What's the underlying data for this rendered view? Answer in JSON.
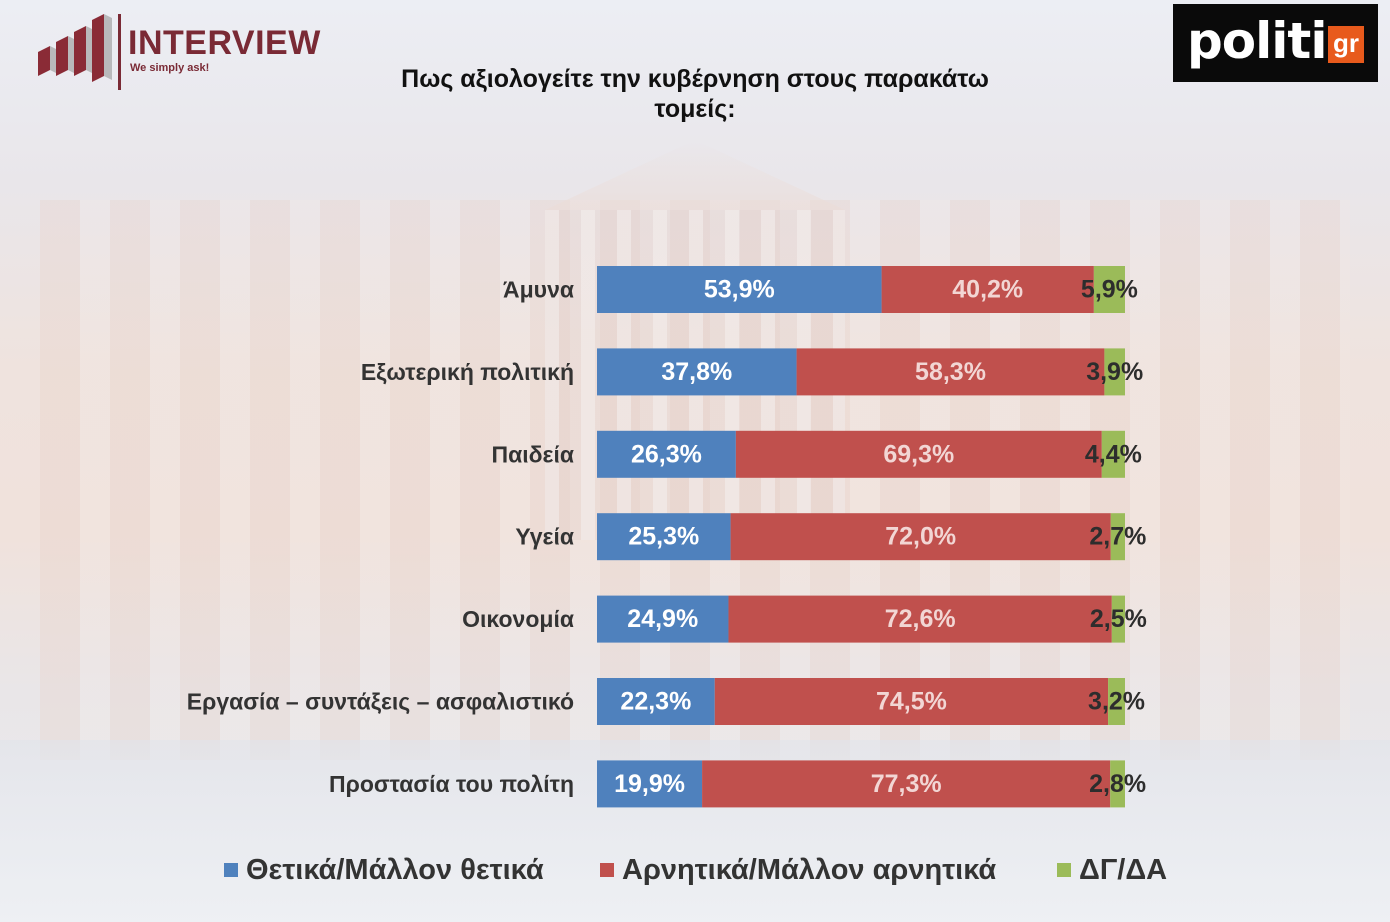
{
  "brand": {
    "interview_name": "INTERVIEW",
    "interview_tagline": "We simply ask!",
    "politic_word": "politic",
    "politic_suffix": "gr"
  },
  "chart_data": {
    "type": "bar",
    "orientation": "horizontal",
    "stacked": true,
    "title": "Πως αξιολογείτε την κυβέρνηση στους παρακάτω\nτομείς:",
    "categories": [
      "Άμυνα",
      "Εξωτερική πολιτική",
      "Παιδεία",
      "Υγεία",
      "Οικονομία",
      "Εργασία – συντάξεις – ασφαλιστικό",
      "Προστασία του πολίτη"
    ],
    "series": [
      {
        "name": "Θετικά/Μάλλον θετικά",
        "color": "#4f81bd",
        "label_color": "#ffffff",
        "values": [
          53.9,
          37.8,
          26.3,
          25.3,
          24.9,
          22.3,
          19.9
        ],
        "labels": [
          "53,9%",
          "37,8%",
          "26,3%",
          "25,3%",
          "24,9%",
          "22,3%",
          "19,9%"
        ]
      },
      {
        "name": "Αρνητικά/Μάλλον αρνητικά",
        "color": "#c0504d",
        "label_color": "#f2d6d4",
        "values": [
          40.2,
          58.3,
          69.3,
          72.0,
          72.6,
          74.5,
          77.3
        ],
        "labels": [
          "40,2%",
          "58,3%",
          "69,3%",
          "72,0%",
          "72,6%",
          "74,5%",
          "77,3%"
        ]
      },
      {
        "name": "ΔΓ/ΔΑ",
        "color": "#9bbb59",
        "label_color": "#2d2d2d",
        "values": [
          5.9,
          3.9,
          4.4,
          2.7,
          2.5,
          3.2,
          2.8
        ],
        "labels": [
          "5,9%",
          "3,9%",
          "4,4%",
          "2,7%",
          "2,5%",
          "3,2%",
          "2,8%"
        ]
      }
    ],
    "xlim": [
      0,
      100
    ],
    "legend_position": "bottom",
    "grid": false
  }
}
